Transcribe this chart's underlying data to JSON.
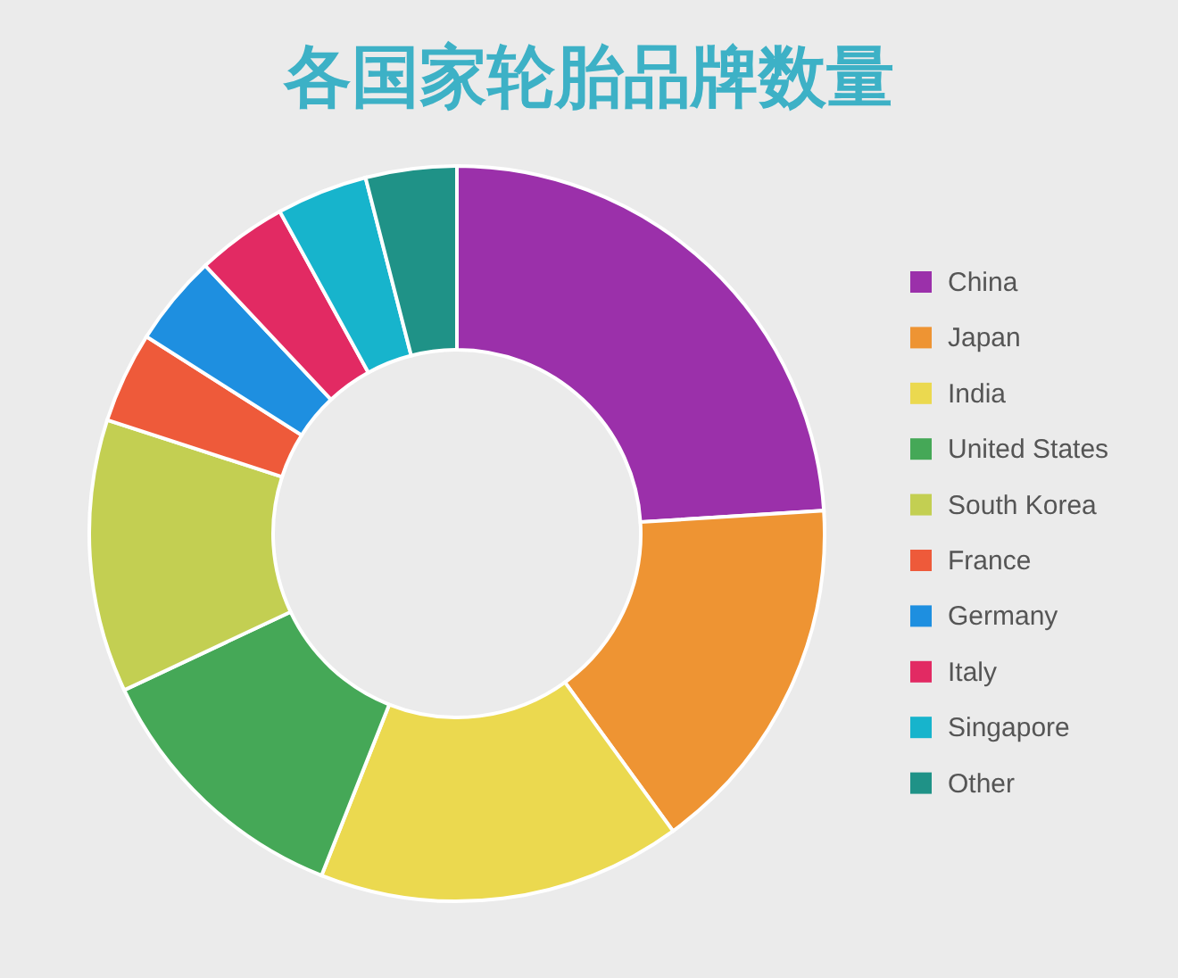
{
  "chart_data": {
    "type": "donut",
    "title": "各国家轮胎品牌数量",
    "categories": [
      "China",
      "Japan",
      "India",
      "United States",
      "South Korea",
      "France",
      "Germany",
      "Italy",
      "Singapore",
      "Other"
    ],
    "values": [
      24,
      16,
      16,
      12,
      12,
      4,
      4,
      4,
      4,
      4
    ],
    "colors": [
      "#9b30aa",
      "#ee9433",
      "#ebd94f",
      "#45a857",
      "#c3cf52",
      "#ee5a3a",
      "#1e8fe0",
      "#e22a63",
      "#17b4cc",
      "#1f9287"
    ],
    "legend": "right"
  }
}
